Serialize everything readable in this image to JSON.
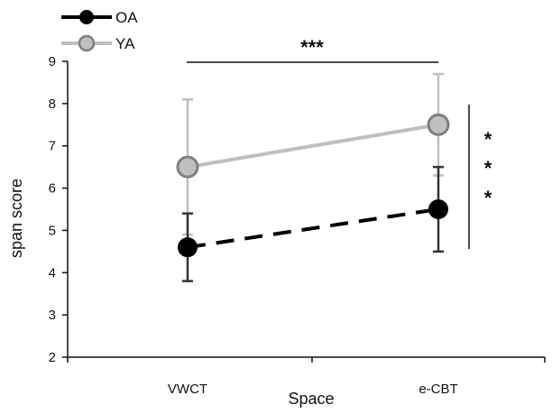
{
  "chart_data": {
    "type": "line",
    "title": "",
    "xlabel": "Space",
    "ylabel": "span score",
    "categories": [
      "VWCT",
      "e-CBT"
    ],
    "ylim": [
      2,
      9
    ],
    "yticks": [
      "2",
      "3",
      "4",
      "5",
      "6",
      "7",
      "8",
      "9"
    ],
    "grid": false,
    "legend_position": "top-left",
    "series": [
      {
        "name": "OA",
        "values": [
          4.6,
          5.5
        ],
        "error_low": [
          3.8,
          4.5
        ],
        "error_high": [
          5.4,
          6.5
        ],
        "color": "#000000",
        "line_style": "dashed",
        "marker": "filled-circle"
      },
      {
        "name": "YA",
        "values": [
          6.5,
          7.5
        ],
        "error_low": [
          4.9,
          6.3
        ],
        "error_high": [
          8.1,
          8.7
        ],
        "color": "#bfbfbf",
        "line_style": "solid",
        "marker": "gray-circle-dark-outline"
      }
    ],
    "annotations": {
      "top_bracket": "***",
      "side_bracket": [
        "*",
        "*",
        "*"
      ]
    }
  }
}
